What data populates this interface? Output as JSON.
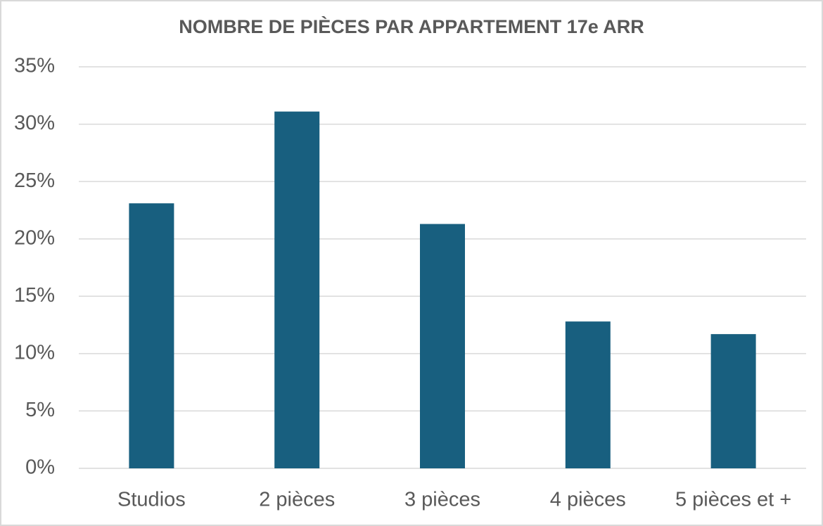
{
  "chart_data": {
    "type": "bar",
    "title": "NOMBRE DE PIÈCES PAR APPARTEMENT 17e ARR",
    "categories": [
      "Studios",
      "2 pièces",
      "3 pièces",
      "4 pièces",
      "5 pièces et +"
    ],
    "values": [
      23.1,
      31.1,
      21.3,
      12.8,
      11.7
    ],
    "color": "#185f7f",
    "ylim": [
      0,
      35
    ],
    "yticks": [
      {
        "value": 0,
        "label": "0%"
      },
      {
        "value": 5,
        "label": "5%"
      },
      {
        "value": 10,
        "label": "10%"
      },
      {
        "value": 15,
        "label": "15%"
      },
      {
        "value": 20,
        "label": "20%"
      },
      {
        "value": 25,
        "label": "25%"
      },
      {
        "value": 30,
        "label": "30%"
      },
      {
        "value": 35,
        "label": "35%"
      }
    ],
    "grid": true
  }
}
